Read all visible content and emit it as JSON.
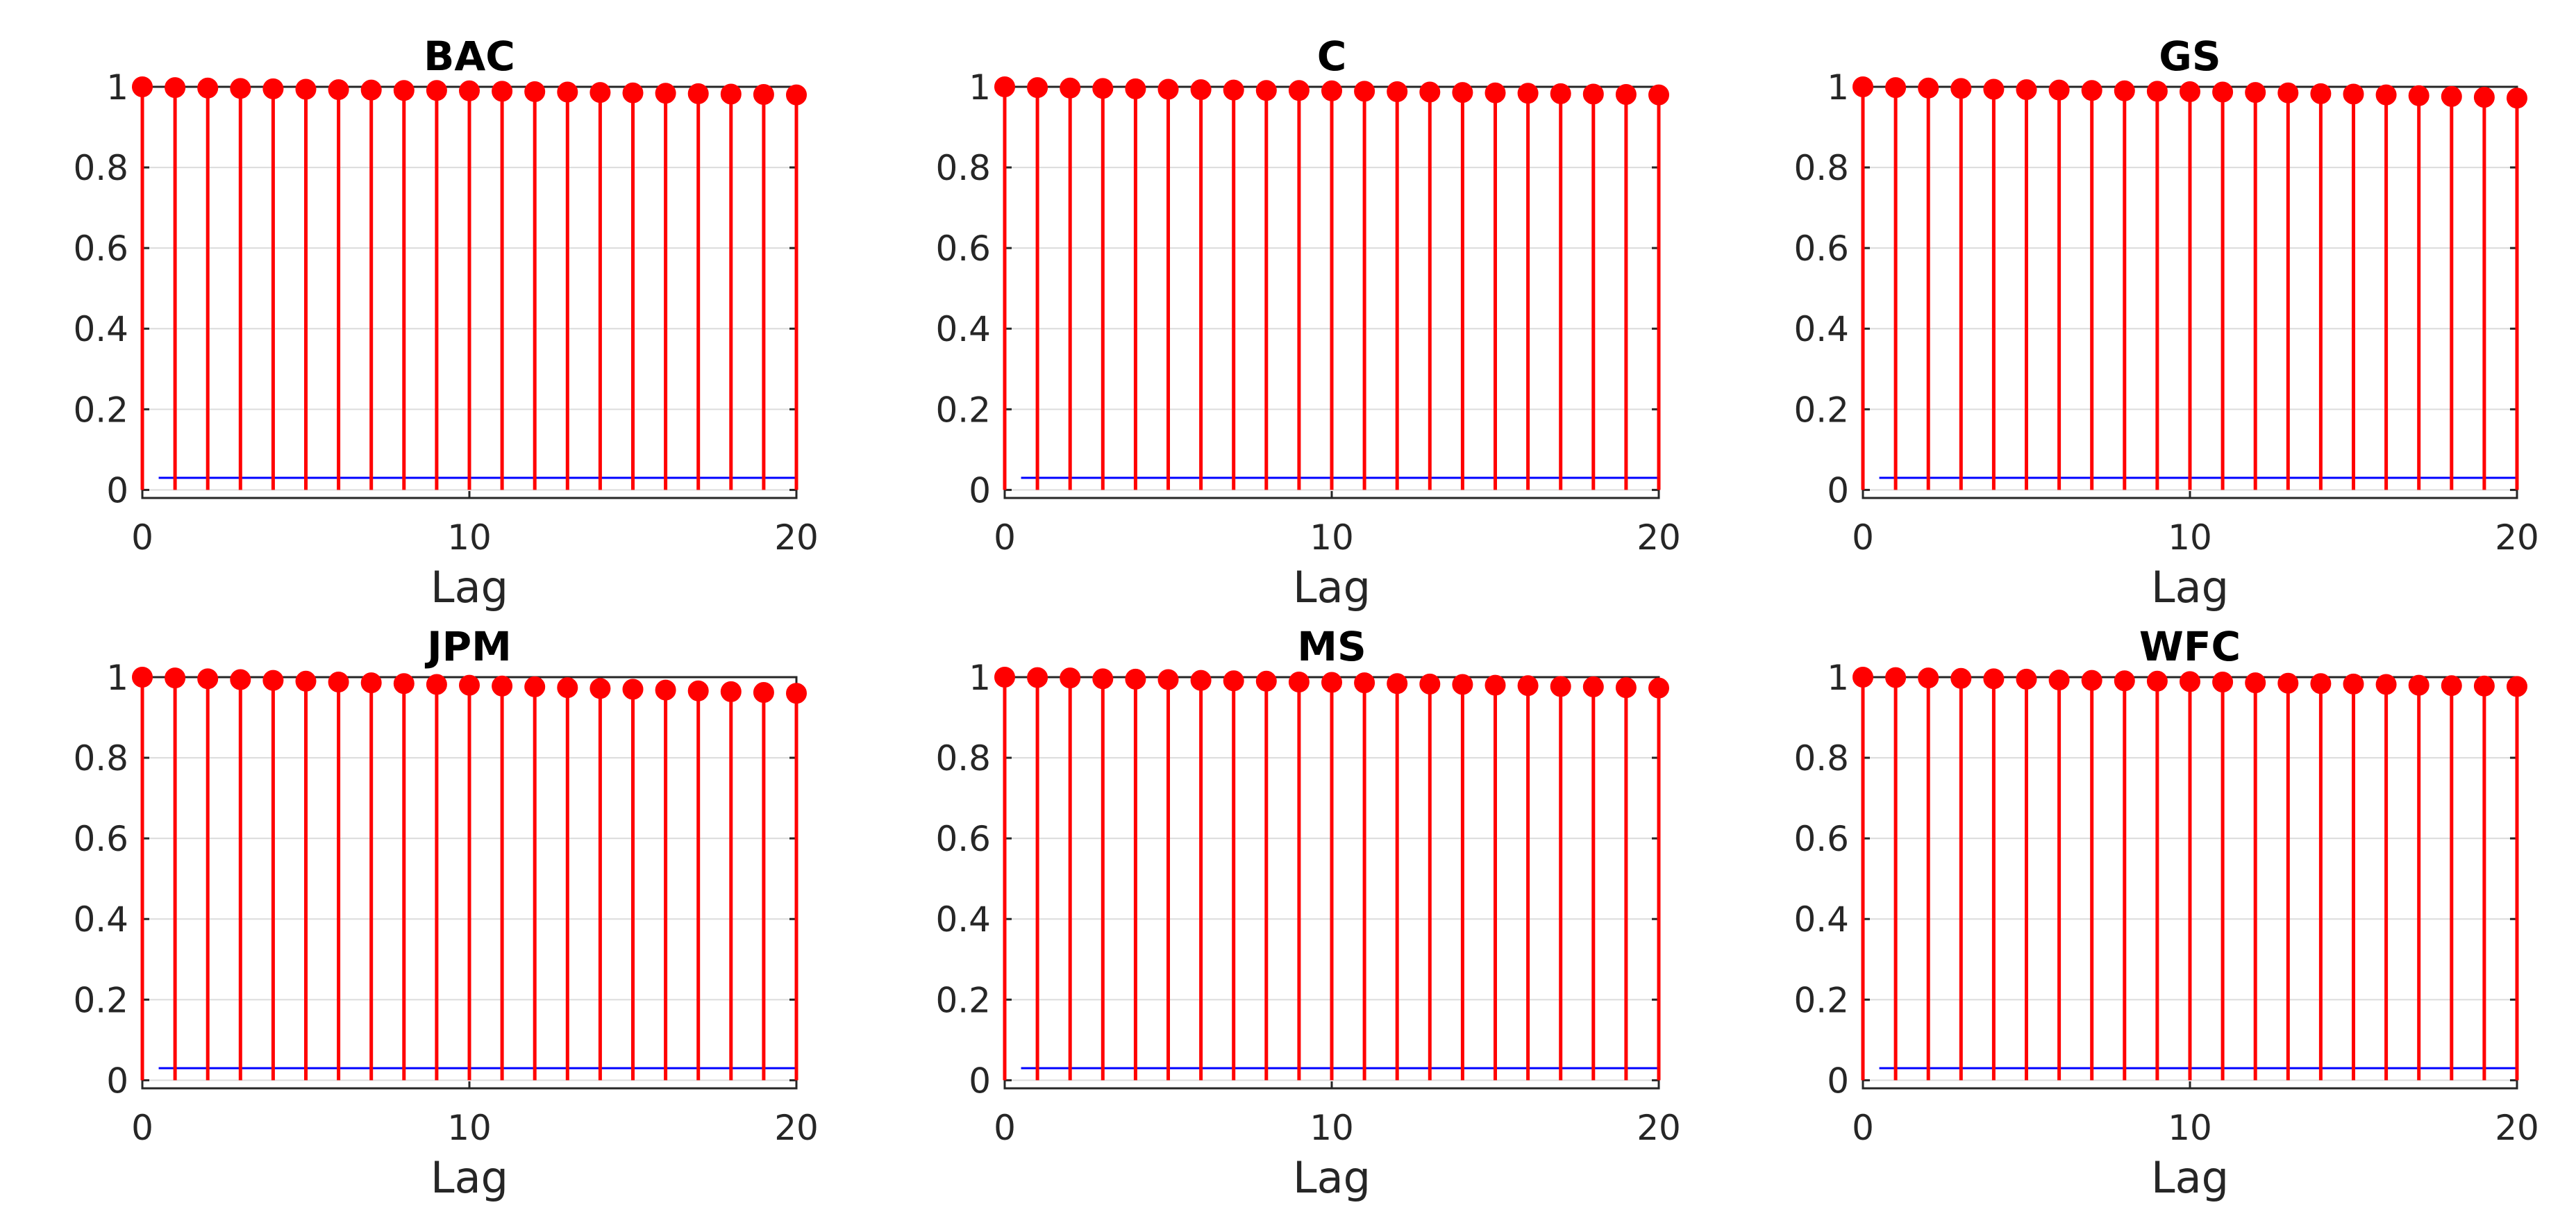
{
  "colors": {
    "stem": "#ff0000",
    "bound": "#0000ff",
    "axis": "#262626",
    "grid": "#dcdcdc"
  },
  "chart_data": [
    {
      "type": "stem",
      "title": "BAC",
      "xlabel": "Lag",
      "ylabel": "",
      "xlim": [
        0,
        20
      ],
      "ylim": [
        -0.02,
        1.0
      ],
      "xticks": [
        "0",
        "10",
        "20"
      ],
      "yticks": [
        "0",
        "0.2",
        "0.4",
        "0.6",
        "0.8",
        "1"
      ],
      "grid": true,
      "x": [
        0,
        1,
        2,
        3,
        4,
        5,
        6,
        7,
        8,
        9,
        10,
        11,
        12,
        13,
        14,
        15,
        16,
        17,
        18,
        19,
        20
      ],
      "values": [
        1.0,
        0.998,
        0.997,
        0.996,
        0.995,
        0.994,
        0.993,
        0.992,
        0.991,
        0.991,
        0.99,
        0.989,
        0.988,
        0.987,
        0.986,
        0.985,
        0.984,
        0.983,
        0.982,
        0.981,
        0.98
      ],
      "confidence_bound": 0.03
    },
    {
      "type": "stem",
      "title": "C",
      "xlabel": "Lag",
      "ylabel": "",
      "xlim": [
        0,
        20
      ],
      "ylim": [
        -0.02,
        1.0
      ],
      "xticks": [
        "0",
        "10",
        "20"
      ],
      "yticks": [
        "0",
        "0.2",
        "0.4",
        "0.6",
        "0.8",
        "1"
      ],
      "grid": true,
      "x": [
        0,
        1,
        2,
        3,
        4,
        5,
        6,
        7,
        8,
        9,
        10,
        11,
        12,
        13,
        14,
        15,
        16,
        17,
        18,
        19,
        20
      ],
      "values": [
        1.0,
        0.998,
        0.997,
        0.996,
        0.995,
        0.994,
        0.993,
        0.992,
        0.991,
        0.991,
        0.99,
        0.989,
        0.988,
        0.987,
        0.986,
        0.985,
        0.984,
        0.983,
        0.982,
        0.981,
        0.98
      ],
      "confidence_bound": 0.03
    },
    {
      "type": "stem",
      "title": "GS",
      "xlabel": "Lag",
      "ylabel": "",
      "xlim": [
        0,
        20
      ],
      "ylim": [
        -0.02,
        1.0
      ],
      "xticks": [
        "0",
        "10",
        "20"
      ],
      "yticks": [
        "0",
        "0.2",
        "0.4",
        "0.6",
        "0.8",
        "1"
      ],
      "grid": true,
      "x": [
        0,
        1,
        2,
        3,
        4,
        5,
        6,
        7,
        8,
        9,
        10,
        11,
        12,
        13,
        14,
        15,
        16,
        17,
        18,
        19,
        20
      ],
      "values": [
        1.0,
        0.998,
        0.997,
        0.996,
        0.994,
        0.993,
        0.992,
        0.991,
        0.99,
        0.989,
        0.988,
        0.987,
        0.986,
        0.985,
        0.983,
        0.982,
        0.98,
        0.978,
        0.976,
        0.974,
        0.972
      ],
      "confidence_bound": 0.03
    },
    {
      "type": "stem",
      "title": "JPM",
      "xlabel": "Lag",
      "ylabel": "",
      "xlim": [
        0,
        20
      ],
      "ylim": [
        -0.02,
        1.0
      ],
      "xticks": [
        "0",
        "10",
        "20"
      ],
      "yticks": [
        "0",
        "0.2",
        "0.4",
        "0.6",
        "0.8",
        "1"
      ],
      "grid": true,
      "x": [
        0,
        1,
        2,
        3,
        4,
        5,
        6,
        7,
        8,
        9,
        10,
        11,
        12,
        13,
        14,
        15,
        16,
        17,
        18,
        19,
        20
      ],
      "values": [
        1.0,
        0.998,
        0.996,
        0.994,
        0.992,
        0.99,
        0.988,
        0.986,
        0.984,
        0.982,
        0.98,
        0.978,
        0.976,
        0.974,
        0.972,
        0.97,
        0.968,
        0.966,
        0.964,
        0.962,
        0.96
      ],
      "confidence_bound": 0.03
    },
    {
      "type": "stem",
      "title": "MS",
      "xlabel": "Lag",
      "ylabel": "",
      "xlim": [
        0,
        20
      ],
      "ylim": [
        -0.02,
        1.0
      ],
      "xticks": [
        "0",
        "10",
        "20"
      ],
      "yticks": [
        "0",
        "0.2",
        "0.4",
        "0.6",
        "0.8",
        "1"
      ],
      "grid": true,
      "x": [
        0,
        1,
        2,
        3,
        4,
        5,
        6,
        7,
        8,
        9,
        10,
        11,
        12,
        13,
        14,
        15,
        16,
        17,
        18,
        19,
        20
      ],
      "values": [
        1.0,
        0.999,
        0.998,
        0.996,
        0.995,
        0.994,
        0.992,
        0.991,
        0.99,
        0.988,
        0.987,
        0.986,
        0.984,
        0.983,
        0.982,
        0.98,
        0.979,
        0.977,
        0.976,
        0.974,
        0.973
      ],
      "confidence_bound": 0.03
    },
    {
      "type": "stem",
      "title": "WFC",
      "xlabel": "Lag",
      "ylabel": "",
      "xlim": [
        0,
        20
      ],
      "ylim": [
        -0.02,
        1.0
      ],
      "xticks": [
        "0",
        "10",
        "20"
      ],
      "yticks": [
        "0",
        "0.2",
        "0.4",
        "0.6",
        "0.8",
        "1"
      ],
      "grid": true,
      "x": [
        0,
        1,
        2,
        3,
        4,
        5,
        6,
        7,
        8,
        9,
        10,
        11,
        12,
        13,
        14,
        15,
        16,
        17,
        18,
        19,
        20
      ],
      "values": [
        1.0,
        0.999,
        0.998,
        0.997,
        0.996,
        0.995,
        0.993,
        0.992,
        0.991,
        0.99,
        0.989,
        0.988,
        0.986,
        0.985,
        0.984,
        0.983,
        0.982,
        0.98,
        0.979,
        0.978,
        0.977
      ],
      "confidence_bound": 0.03
    }
  ]
}
